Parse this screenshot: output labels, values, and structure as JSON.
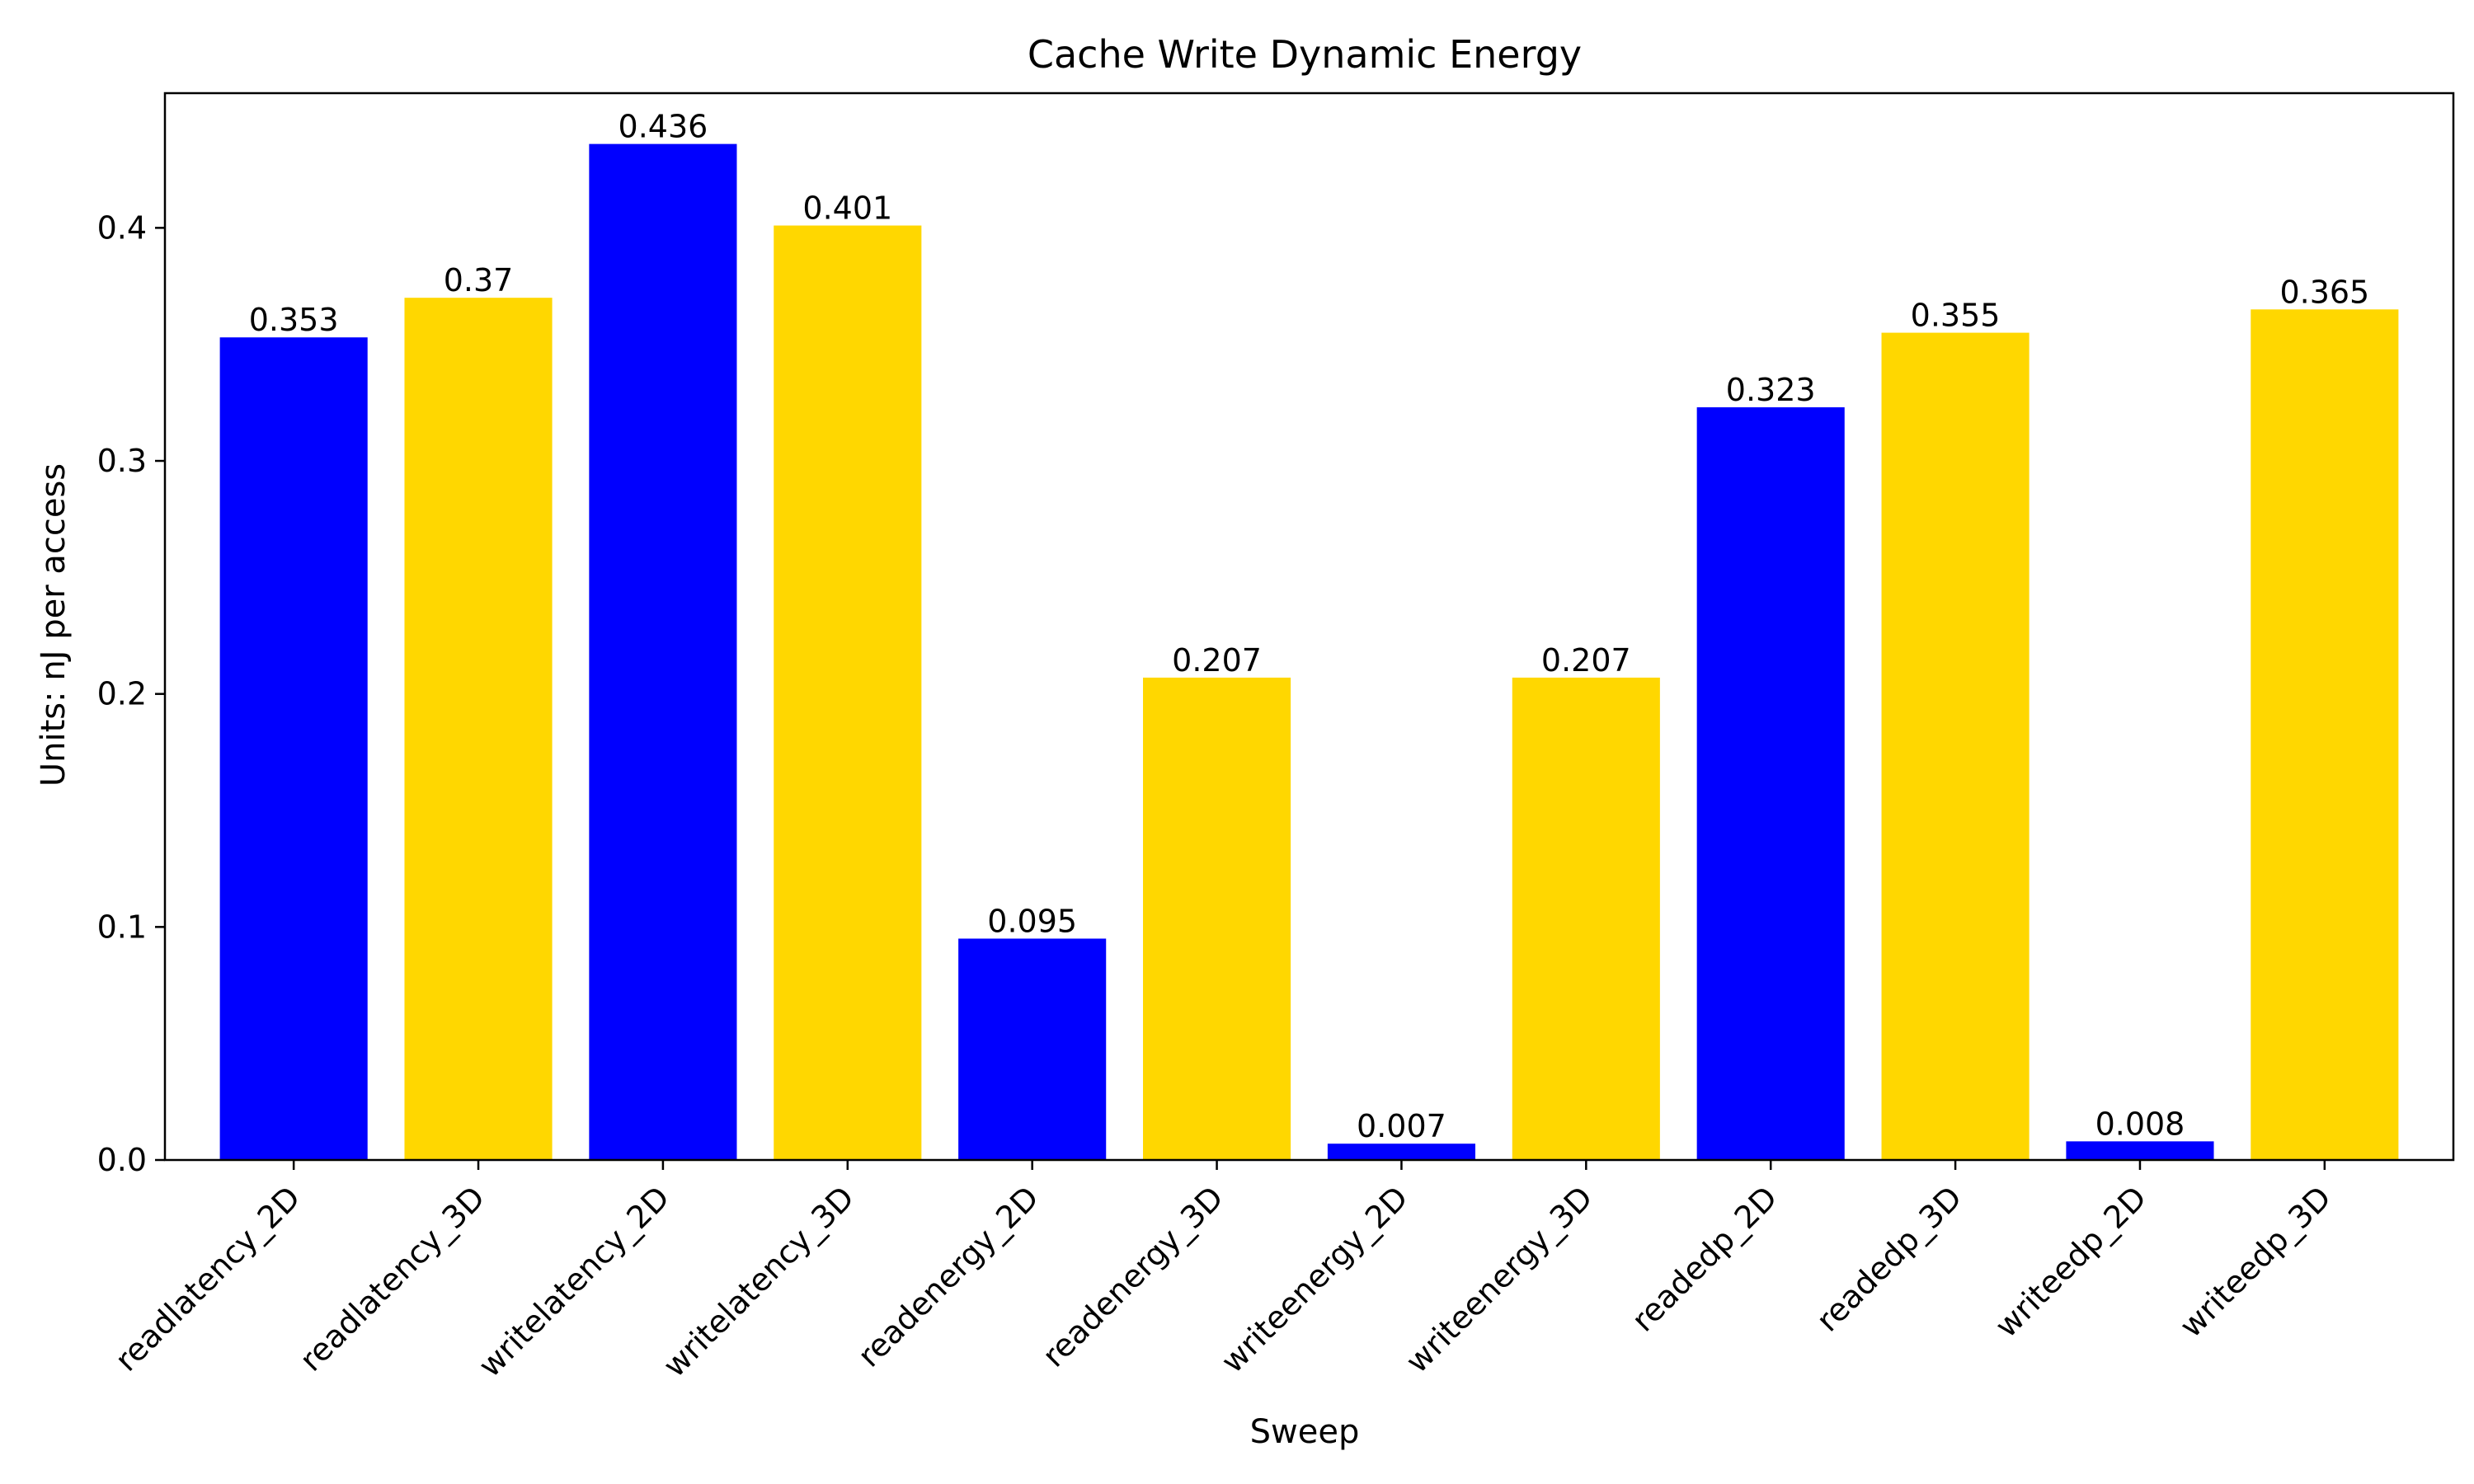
{
  "chart_data": {
    "type": "bar",
    "title": "Cache Write Dynamic Energy",
    "xlabel": "Sweep",
    "ylabel": "Units: nJ per access",
    "categories": [
      "readlatency_2D",
      "readlatency_3D",
      "writelatency_2D",
      "writelatency_3D",
      "readenergy_2D",
      "readenergy_3D",
      "writeenergy_2D",
      "writeenergy_3D",
      "readedp_2D",
      "readedp_3D",
      "writeedp_2D",
      "writeedp_3D"
    ],
    "values": [
      0.353,
      0.37,
      0.436,
      0.401,
      0.095,
      0.207,
      0.007,
      0.207,
      0.323,
      0.355,
      0.008,
      0.365
    ],
    "data_labels": [
      "0.353",
      "0.37",
      "0.436",
      "0.401",
      "0.095",
      "0.207",
      "0.007",
      "0.207",
      "0.323",
      "0.355",
      "0.008",
      "0.365"
    ],
    "colors": [
      "#0000ff",
      "#ffd700",
      "#0000ff",
      "#ffd700",
      "#0000ff",
      "#ffd700",
      "#0000ff",
      "#ffd700",
      "#0000ff",
      "#ffd700",
      "#0000ff",
      "#ffd700"
    ],
    "ylim": [
      0,
      0.4578
    ],
    "yticks": [
      0.0,
      0.1,
      0.2,
      0.3,
      0.4
    ],
    "ytick_labels": [
      "0.0",
      "0.1",
      "0.2",
      "0.3",
      "0.4"
    ],
    "grid": false,
    "legend": "none"
  }
}
